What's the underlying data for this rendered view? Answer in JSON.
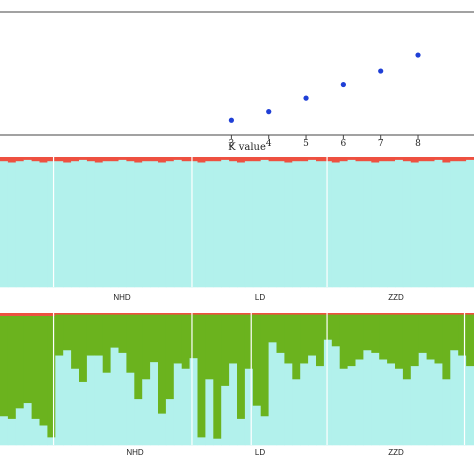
{
  "chart_data": [
    {
      "type": "scatter",
      "xlabel": "K value",
      "ylabel": "",
      "x": [
        3,
        4,
        5,
        6,
        7,
        8
      ],
      "y": [
        0.12,
        0.19,
        0.3,
        0.41,
        0.52,
        0.65
      ],
      "xlim": [
        -3.2,
        9.5
      ],
      "ylim": [
        0,
        1
      ],
      "x_tick_labels": [
        "3",
        "4",
        "5",
        "6",
        "7",
        "8"
      ],
      "y_tick_labels": [],
      "grid": false,
      "point_color": "#1f3fd6"
    },
    {
      "type": "bar",
      "stacked": true,
      "k": 2,
      "populations": [
        "NHD",
        "LD",
        "ZZD"
      ],
      "series": [
        {
          "color": "#b2f1ec",
          "values": [
            0.97,
            0.96,
            0.97,
            0.98,
            0.97,
            0.96,
            0.97,
            0.97,
            0.96,
            0.97,
            0.98,
            0.97,
            0.96,
            0.97,
            0.97,
            0.98,
            0.97,
            0.96,
            0.97,
            0.97,
            0.96,
            0.97,
            0.98,
            0.97,
            0.97,
            0.96,
            0.97,
            0.97,
            0.98,
            0.97,
            0.96,
            0.97,
            0.97,
            0.98,
            0.97,
            0.97,
            0.96,
            0.97,
            0.97,
            0.98,
            0.97,
            0.97,
            0.96,
            0.97,
            0.98,
            0.97,
            0.97,
            0.96,
            0.97,
            0.97,
            0.98,
            0.97,
            0.96,
            0.97,
            0.97,
            0.98,
            0.96,
            0.97,
            0.97,
            0.98
          ]
        },
        {
          "color": "#ee5040",
          "values": [
            0.03,
            0.04,
            0.03,
            0.02,
            0.03,
            0.04,
            0.03,
            0.03,
            0.04,
            0.03,
            0.02,
            0.03,
            0.04,
            0.03,
            0.03,
            0.02,
            0.03,
            0.04,
            0.03,
            0.03,
            0.04,
            0.03,
            0.02,
            0.03,
            0.03,
            0.04,
            0.03,
            0.03,
            0.02,
            0.03,
            0.04,
            0.03,
            0.03,
            0.02,
            0.03,
            0.03,
            0.04,
            0.03,
            0.03,
            0.02,
            0.03,
            0.03,
            0.04,
            0.03,
            0.02,
            0.03,
            0.03,
            0.04,
            0.03,
            0.03,
            0.02,
            0.03,
            0.04,
            0.03,
            0.03,
            0.02,
            0.04,
            0.03,
            0.03,
            0.02
          ]
        }
      ]
    },
    {
      "type": "bar",
      "stacked": true,
      "k": 3,
      "populations": [
        "NHD",
        "LD",
        "ZZD"
      ],
      "series": [
        {
          "color": "#b2f1ec",
          "values": [
            0.22,
            0.2,
            0.28,
            0.32,
            0.2,
            0.15,
            0.06,
            0.68,
            0.72,
            0.58,
            0.48,
            0.68,
            0.68,
            0.55,
            0.74,
            0.7,
            0.55,
            0.35,
            0.5,
            0.63,
            0.24,
            0.35,
            0.62,
            0.58,
            0.66,
            0.06,
            0.5,
            0.05,
            0.45,
            0.62,
            0.2,
            0.58,
            0.3,
            0.22,
            0.78,
            0.7,
            0.62,
            0.5,
            0.62,
            0.68,
            0.6,
            0.8,
            0.75,
            0.58,
            0.6,
            0.65,
            0.72,
            0.7,
            0.65,
            0.62,
            0.58,
            0.5,
            0.6,
            0.7,
            0.65,
            0.62,
            0.5,
            0.72,
            0.68,
            0.6
          ]
        },
        {
          "color": "#6bb31e",
          "values": [
            0.76,
            0.78,
            0.7,
            0.66,
            0.78,
            0.83,
            0.92,
            0.31,
            0.27,
            0.41,
            0.51,
            0.31,
            0.31,
            0.44,
            0.25,
            0.29,
            0.44,
            0.64,
            0.49,
            0.36,
            0.75,
            0.64,
            0.37,
            0.41,
            0.33,
            0.93,
            0.49,
            0.94,
            0.54,
            0.37,
            0.79,
            0.41,
            0.69,
            0.77,
            0.21,
            0.29,
            0.37,
            0.49,
            0.37,
            0.31,
            0.39,
            0.19,
            0.24,
            0.41,
            0.39,
            0.34,
            0.27,
            0.29,
            0.34,
            0.37,
            0.41,
            0.49,
            0.39,
            0.29,
            0.34,
            0.37,
            0.49,
            0.27,
            0.31,
            0.39
          ]
        },
        {
          "color": "#ee5040",
          "values": [
            0.02,
            0.02,
            0.02,
            0.02,
            0.02,
            0.02,
            0.02,
            0.01,
            0.01,
            0.01,
            0.01,
            0.01,
            0.01,
            0.01,
            0.01,
            0.01,
            0.01,
            0.01,
            0.01,
            0.01,
            0.01,
            0.01,
            0.01,
            0.01,
            0.01,
            0.01,
            0.01,
            0.01,
            0.01,
            0.01,
            0.01,
            0.01,
            0.01,
            0.01,
            0.01,
            0.01,
            0.01,
            0.01,
            0.01,
            0.01,
            0.01,
            0.01,
            0.01,
            0.01,
            0.01,
            0.01,
            0.01,
            0.01,
            0.01,
            0.01,
            0.01,
            0.01,
            0.01,
            0.01,
            0.01,
            0.01,
            0.01,
            0.01,
            0.01,
            0.01
          ]
        }
      ]
    }
  ],
  "populations": [
    "NHD",
    "LD",
    "ZZD"
  ]
}
